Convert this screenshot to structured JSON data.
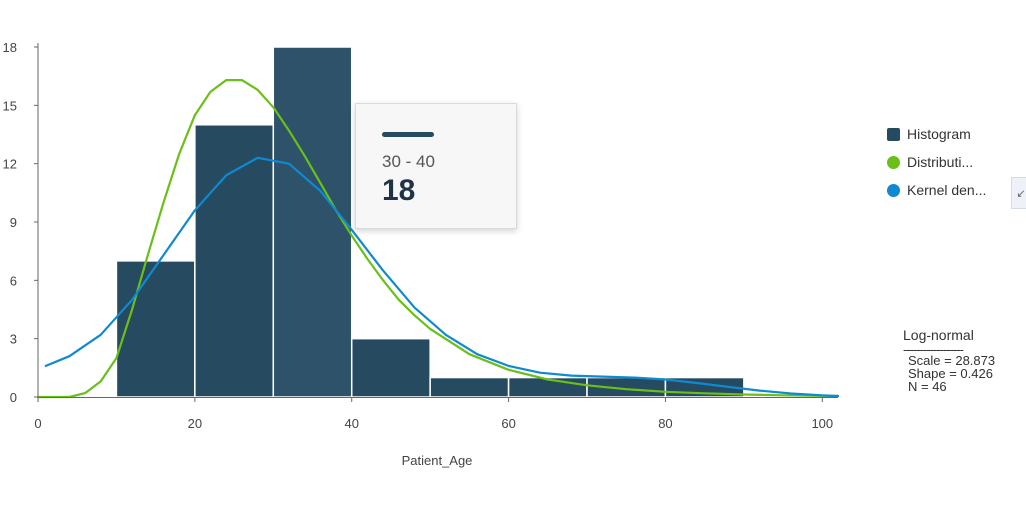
{
  "chart_data": {
    "type": "bar",
    "xlabel": "Patient_Age",
    "ylabel": "",
    "xlim": [
      0,
      102
    ],
    "ylim": [
      0,
      18
    ],
    "x_ticks": [
      0,
      20,
      40,
      60,
      80,
      100
    ],
    "y_ticks": [
      0,
      3,
      6,
      9,
      12,
      15,
      18
    ],
    "grid": false,
    "series": [
      {
        "name": "Histogram",
        "type": "histogram",
        "color": "#264a60",
        "bins": [
          {
            "start": 10,
            "end": 20,
            "count": 7
          },
          {
            "start": 20,
            "end": 30,
            "count": 14
          },
          {
            "start": 30,
            "end": 40,
            "count": 18
          },
          {
            "start": 40,
            "end": 50,
            "count": 3
          },
          {
            "start": 50,
            "end": 60,
            "count": 1
          },
          {
            "start": 60,
            "end": 70,
            "count": 1
          },
          {
            "start": 70,
            "end": 80,
            "count": 1
          },
          {
            "start": 80,
            "end": 90,
            "count": 1
          }
        ]
      },
      {
        "name": "Distributi...",
        "type": "line",
        "color": "#6abf18",
        "points": [
          [
            0,
            0
          ],
          [
            4,
            0
          ],
          [
            6,
            0.2
          ],
          [
            8,
            0.8
          ],
          [
            10,
            2
          ],
          [
            12,
            4.5
          ],
          [
            14,
            7.3
          ],
          [
            16,
            10
          ],
          [
            18,
            12.5
          ],
          [
            20,
            14.5
          ],
          [
            22,
            15.7
          ],
          [
            24,
            16.3
          ],
          [
            26,
            16.3
          ],
          [
            28,
            15.8
          ],
          [
            30,
            14.9
          ],
          [
            32,
            13.7
          ],
          [
            34,
            12.4
          ],
          [
            36,
            11
          ],
          [
            38,
            9.6
          ],
          [
            40,
            8.3
          ],
          [
            42,
            7.1
          ],
          [
            44,
            6
          ],
          [
            46,
            5
          ],
          [
            48,
            4.2
          ],
          [
            50,
            3.5
          ],
          [
            55,
            2.2
          ],
          [
            60,
            1.4
          ],
          [
            65,
            0.9
          ],
          [
            70,
            0.6
          ],
          [
            75,
            0.4
          ],
          [
            80,
            0.27
          ],
          [
            85,
            0.19
          ],
          [
            90,
            0.13
          ],
          [
            95,
            0.09
          ],
          [
            102,
            0.05
          ]
        ]
      },
      {
        "name": "Kernel den...",
        "type": "line",
        "color": "#0f8ad0",
        "points": [
          [
            1,
            1.6
          ],
          [
            4,
            2.1
          ],
          [
            8,
            3.2
          ],
          [
            12,
            5
          ],
          [
            16,
            7.3
          ],
          [
            20,
            9.6
          ],
          [
            24,
            11.4
          ],
          [
            28,
            12.3
          ],
          [
            32,
            12
          ],
          [
            36,
            10.6
          ],
          [
            40,
            8.6
          ],
          [
            44,
            6.5
          ],
          [
            48,
            4.6
          ],
          [
            52,
            3.2
          ],
          [
            56,
            2.2
          ],
          [
            60,
            1.6
          ],
          [
            64,
            1.25
          ],
          [
            68,
            1.1
          ],
          [
            72,
            1.05
          ],
          [
            76,
            1.0
          ],
          [
            80,
            0.9
          ],
          [
            84,
            0.72
          ],
          [
            88,
            0.52
          ],
          [
            92,
            0.33
          ],
          [
            96,
            0.18
          ],
          [
            100,
            0.08
          ],
          [
            102,
            0.05
          ]
        ]
      }
    ],
    "tooltip": {
      "range": "30 - 40",
      "value": "18"
    },
    "legend_position": "right",
    "stats": {
      "title": "Log-normal",
      "separator": "------------------",
      "lines": [
        "Scale = 28.873",
        "Shape = 0.426",
        "N = 46"
      ]
    }
  },
  "ui": {
    "collapse_icon": "collapse-arrow-icon",
    "collapse_glyph": "↙"
  }
}
